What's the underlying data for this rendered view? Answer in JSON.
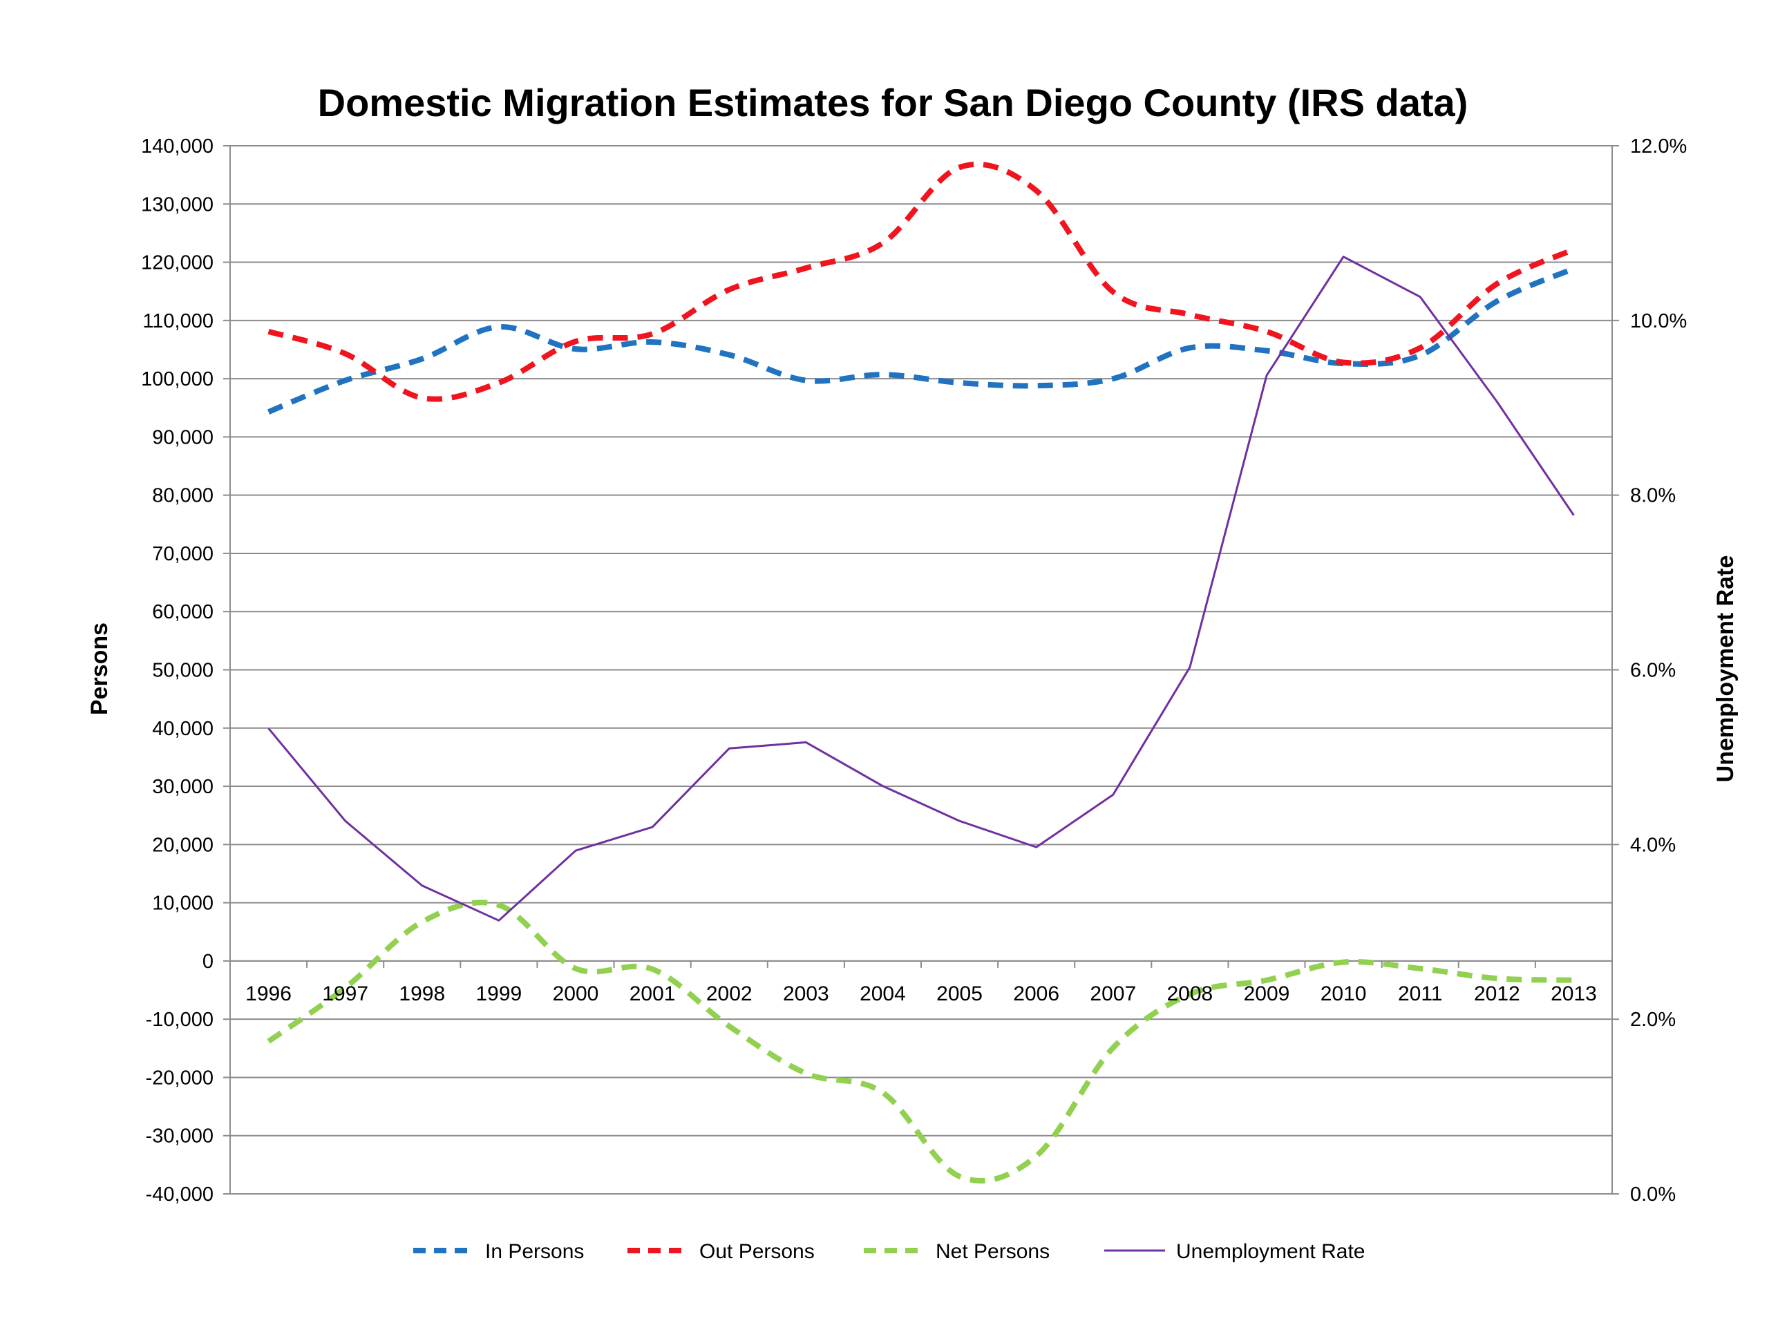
{
  "chart_data": {
    "type": "line",
    "title": "Domestic Migration Estimates for San Diego County (IRS data)",
    "ylabel": "Persons",
    "y2label": "Unemployment Rate",
    "categories": [
      "1996",
      "1997",
      "1998",
      "1999",
      "2000",
      "2001",
      "2002",
      "2003",
      "2004",
      "2005",
      "2006",
      "2007",
      "2008",
      "2009",
      "2010",
      "2011",
      "2012",
      "2013"
    ],
    "ylim": [
      -40000,
      140000
    ],
    "y2lim": [
      0,
      12
    ],
    "yticks": [
      {
        "value": 140000,
        "label": "140,000"
      },
      {
        "value": 130000,
        "label": "130,000"
      },
      {
        "value": 120000,
        "label": "120,000"
      },
      {
        "value": 110000,
        "label": "110,000"
      },
      {
        "value": 100000,
        "label": "100,000"
      },
      {
        "value": 90000,
        "label": "90,000"
      },
      {
        "value": 80000,
        "label": "80,000"
      },
      {
        "value": 70000,
        "label": "70,000"
      },
      {
        "value": 60000,
        "label": "60,000"
      },
      {
        "value": 50000,
        "label": "50,000"
      },
      {
        "value": 40000,
        "label": "40,000"
      },
      {
        "value": 30000,
        "label": "30,000"
      },
      {
        "value": 20000,
        "label": "20,000"
      },
      {
        "value": 10000,
        "label": "10,000"
      },
      {
        "value": 0,
        "label": "0"
      },
      {
        "value": -10000,
        "label": "-10,000"
      },
      {
        "value": -20000,
        "label": "-20,000"
      },
      {
        "value": -30000,
        "label": "-30,000"
      },
      {
        "value": -40000,
        "label": "-40,000"
      }
    ],
    "y2ticks": [
      {
        "value": 12,
        "label": "12.0%"
      },
      {
        "value": 10,
        "label": "10.0%"
      },
      {
        "value": 8,
        "label": "8.0%"
      },
      {
        "value": 6,
        "label": "6.0%"
      },
      {
        "value": 4,
        "label": "4.0%"
      },
      {
        "value": 2,
        "label": "2.0%"
      },
      {
        "value": 0,
        "label": "0.0%"
      }
    ],
    "grid": true,
    "legend_position": "bottom",
    "series": [
      {
        "name": "In Persons",
        "axis": "left",
        "style": "dashed",
        "color": "#1F73C1",
        "values": [
          94300,
          99700,
          103400,
          108900,
          105100,
          106300,
          104100,
          99700,
          100700,
          99300,
          98800,
          100000,
          105300,
          104800,
          102600,
          104000,
          113300,
          118900
        ]
      },
      {
        "name": "Out Persons",
        "axis": "left",
        "style": "dashed",
        "color": "#F0141E",
        "values": [
          108100,
          104300,
          96700,
          99300,
          106400,
          107700,
          115300,
          119000,
          123300,
          136300,
          132300,
          114900,
          111000,
          108100,
          102800,
          105300,
          116300,
          122200
        ]
      },
      {
        "name": "Net Persons",
        "axis": "left",
        "style": "dashed",
        "color": "#92D050",
        "values": [
          -13800,
          -4600,
          6700,
          9600,
          -1300,
          -1400,
          -11200,
          -19300,
          -22600,
          -37000,
          -33500,
          -14900,
          -5700,
          -3300,
          -200,
          -1300,
          -3000,
          -3300
        ]
      },
      {
        "name": "Unemployment Rate",
        "axis": "right",
        "style": "solid",
        "color": "#7030A0",
        "values": [
          5.33,
          4.27,
          3.53,
          3.13,
          3.93,
          4.2,
          5.1,
          5.17,
          4.67,
          4.27,
          3.97,
          4.57,
          6.03,
          9.37,
          10.73,
          10.27,
          9.07,
          7.77
        ]
      }
    ]
  }
}
